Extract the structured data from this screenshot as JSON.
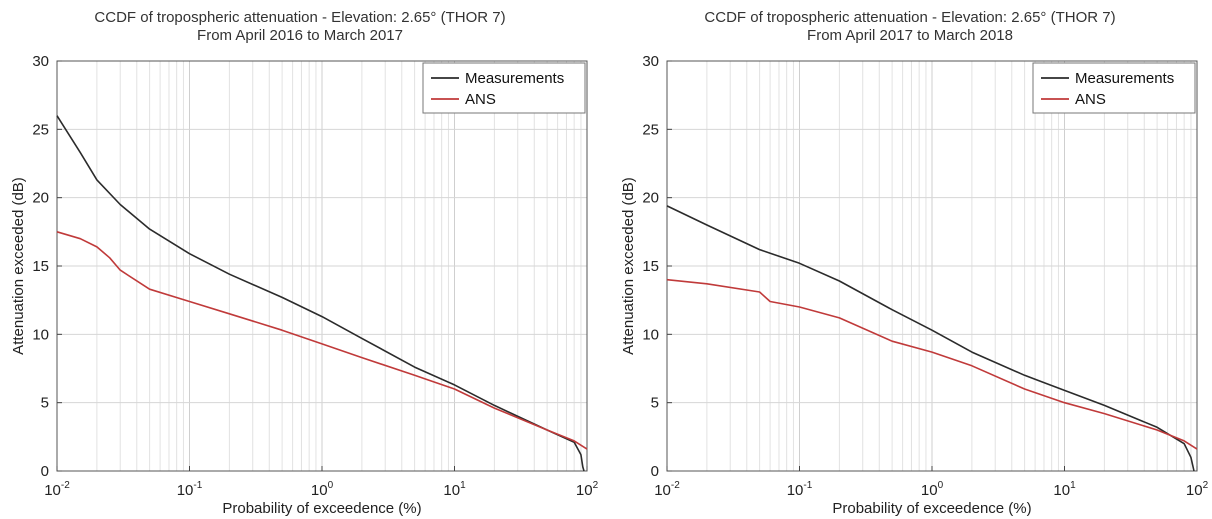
{
  "chart_data": [
    {
      "type": "line",
      "title": "CCDF of tropospheric attenuation - Elevation: 2.65° (THOR 7)",
      "subtitle": "From April 2016 to March 2017",
      "xlabel": "Probability of exceedence (%)",
      "ylabel": "Attenuation exceeded (dB)",
      "xscale": "log",
      "xlim": [
        0.01,
        100
      ],
      "ylim": [
        0,
        30
      ],
      "yticks": [
        "0",
        "5",
        "10",
        "15",
        "20",
        "25",
        "30"
      ],
      "xticks": [
        {
          "base": "10",
          "exp": "-2"
        },
        {
          "base": "10",
          "exp": "-1"
        },
        {
          "base": "10",
          "exp": "0"
        },
        {
          "base": "10",
          "exp": "1"
        },
        {
          "base": "10",
          "exp": "2"
        }
      ],
      "grid": true,
      "legend_position": "top-right",
      "series": [
        {
          "name": "Measurements",
          "color": "#2b2b2b",
          "points": [
            [
              0.01,
              26.0
            ],
            [
              0.015,
              23.3
            ],
            [
              0.02,
              21.3
            ],
            [
              0.03,
              19.5
            ],
            [
              0.05,
              17.7
            ],
            [
              0.1,
              15.9
            ],
            [
              0.2,
              14.4
            ],
            [
              0.5,
              12.7
            ],
            [
              1,
              11.3
            ],
            [
              2,
              9.7
            ],
            [
              5,
              7.6
            ],
            [
              10,
              6.3
            ],
            [
              20,
              4.8
            ],
            [
              50,
              3.0
            ],
            [
              80,
              2.1
            ],
            [
              90,
              1.2
            ],
            [
              93,
              0.3
            ],
            [
              95,
              0.0
            ]
          ]
        },
        {
          "name": "ANS",
          "color": "#c03a3a",
          "points": [
            [
              0.01,
              17.5
            ],
            [
              0.015,
              17.0
            ],
            [
              0.02,
              16.4
            ],
            [
              0.025,
              15.6
            ],
            [
              0.03,
              14.7
            ],
            [
              0.05,
              13.3
            ],
            [
              0.1,
              12.4
            ],
            [
              0.2,
              11.5
            ],
            [
              0.5,
              10.3
            ],
            [
              1,
              9.3
            ],
            [
              2,
              8.3
            ],
            [
              5,
              7.0
            ],
            [
              10,
              6.0
            ],
            [
              20,
              4.6
            ],
            [
              50,
              3.0
            ],
            [
              80,
              2.2
            ],
            [
              100,
              1.6
            ]
          ]
        }
      ]
    },
    {
      "type": "line",
      "title": "CCDF of tropospheric attenuation - Elevation: 2.65° (THOR 7)",
      "subtitle": "From April 2017 to March 2018",
      "xlabel": "Probability of exceedence (%)",
      "ylabel": "Attenuation exceeded (dB)",
      "xscale": "log",
      "xlim": [
        0.01,
        100
      ],
      "ylim": [
        0,
        30
      ],
      "yticks": [
        "0",
        "5",
        "10",
        "15",
        "20",
        "25",
        "30"
      ],
      "xticks": [
        {
          "base": "10",
          "exp": "-2"
        },
        {
          "base": "10",
          "exp": "-1"
        },
        {
          "base": "10",
          "exp": "0"
        },
        {
          "base": "10",
          "exp": "1"
        },
        {
          "base": "10",
          "exp": "2"
        }
      ],
      "grid": true,
      "legend_position": "top-right",
      "series": [
        {
          "name": "Measurements",
          "color": "#2b2b2b",
          "points": [
            [
              0.01,
              19.4
            ],
            [
              0.02,
              18.0
            ],
            [
              0.05,
              16.2
            ],
            [
              0.1,
              15.2
            ],
            [
              0.2,
              13.9
            ],
            [
              0.5,
              11.8
            ],
            [
              1,
              10.3
            ],
            [
              2,
              8.7
            ],
            [
              5,
              7.0
            ],
            [
              10,
              5.9
            ],
            [
              20,
              4.8
            ],
            [
              50,
              3.2
            ],
            [
              80,
              2.0
            ],
            [
              90,
              1.0
            ],
            [
              95,
              0.0
            ]
          ]
        },
        {
          "name": "ANS",
          "color": "#c03a3a",
          "points": [
            [
              0.01,
              14.0
            ],
            [
              0.02,
              13.7
            ],
            [
              0.05,
              13.1
            ],
            [
              0.06,
              12.4
            ],
            [
              0.1,
              12.0
            ],
            [
              0.2,
              11.2
            ],
            [
              0.5,
              9.5
            ],
            [
              1,
              8.7
            ],
            [
              2,
              7.7
            ],
            [
              5,
              6.0
            ],
            [
              10,
              5.0
            ],
            [
              20,
              4.2
            ],
            [
              50,
              3.0
            ],
            [
              80,
              2.2
            ],
            [
              100,
              1.6
            ]
          ]
        }
      ]
    }
  ]
}
